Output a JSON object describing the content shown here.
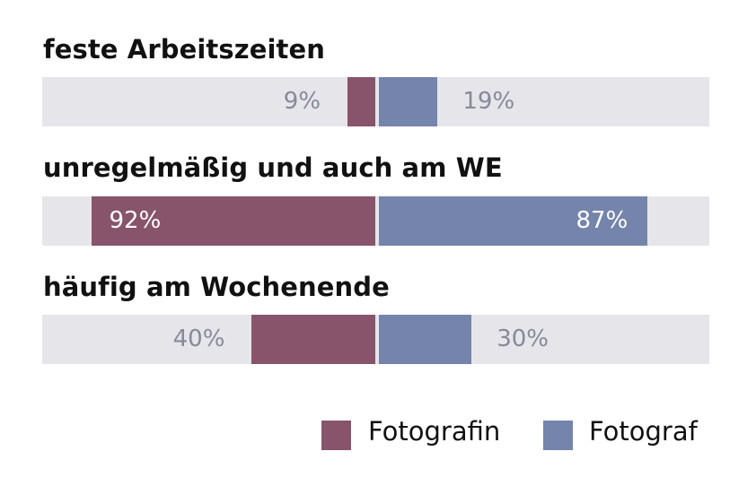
{
  "chart_data": {
    "type": "bar",
    "orientation": "horizontal-diverging",
    "categories": [
      "feste Arbeitszeiten",
      "unregelmäßig und auch am WE",
      "häufig am Wochenende"
    ],
    "series": [
      {
        "name": "Fotografin",
        "color": "#88546c",
        "values": [
          9,
          92,
          40
        ]
      },
      {
        "name": "Fotograf",
        "color": "#7484ab",
        "values": [
          19,
          87,
          30
        ]
      }
    ],
    "value_labels": [
      {
        "f": "9%",
        "m": "19%"
      },
      {
        "f": "92%",
        "m": "87%"
      },
      {
        "f": "40%",
        "m": "30%"
      }
    ],
    "xlim": [
      0,
      100
    ],
    "unit": "%",
    "legend_position": "bottom-right",
    "grid": false
  },
  "legend": {
    "items": [
      {
        "label": "Fotografin",
        "color": "#88546c"
      },
      {
        "label": "Fotograf",
        "color": "#7484ab"
      }
    ]
  },
  "colors": {
    "track": "#e6e5ea",
    "outside_label": "#858a99",
    "inside_label": "#ffffff"
  }
}
